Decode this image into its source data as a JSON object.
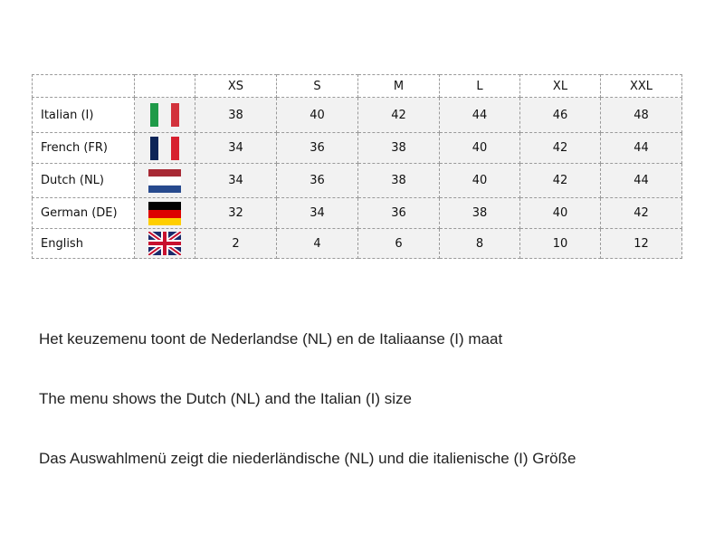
{
  "table": {
    "headers": [
      "",
      "",
      "XS",
      "S",
      "M",
      "L",
      "XL",
      "XXL"
    ],
    "rows": [
      {
        "label": "Italian (I)",
        "flag": "italy-flag",
        "values": [
          "38",
          "40",
          "42",
          "44",
          "46",
          "48"
        ]
      },
      {
        "label": "French (FR)",
        "flag": "france-flag",
        "values": [
          "34",
          "36",
          "38",
          "40",
          "42",
          "44"
        ]
      },
      {
        "label": "Dutch (NL)",
        "flag": "netherlands-flag",
        "values": [
          "34",
          "36",
          "38",
          "40",
          "42",
          "44"
        ]
      },
      {
        "label": "German (DE)",
        "flag": "germany-flag",
        "values": [
          "32",
          "34",
          "36",
          "38",
          "40",
          "42"
        ]
      },
      {
        "label": "English",
        "flag": "uk-flag",
        "values": [
          "2",
          "4",
          "6",
          "8",
          "10",
          "12"
        ]
      }
    ]
  },
  "notes": [
    "Het keuzemenu toont de Nederlandse (NL) en de Italiaanse (I) maat",
    "The menu  shows the Dutch (NL) and the Italian (I) size",
    "Das Auswahlmenü zeigt die niederländische (NL) und die italienische (I) Größe"
  ]
}
